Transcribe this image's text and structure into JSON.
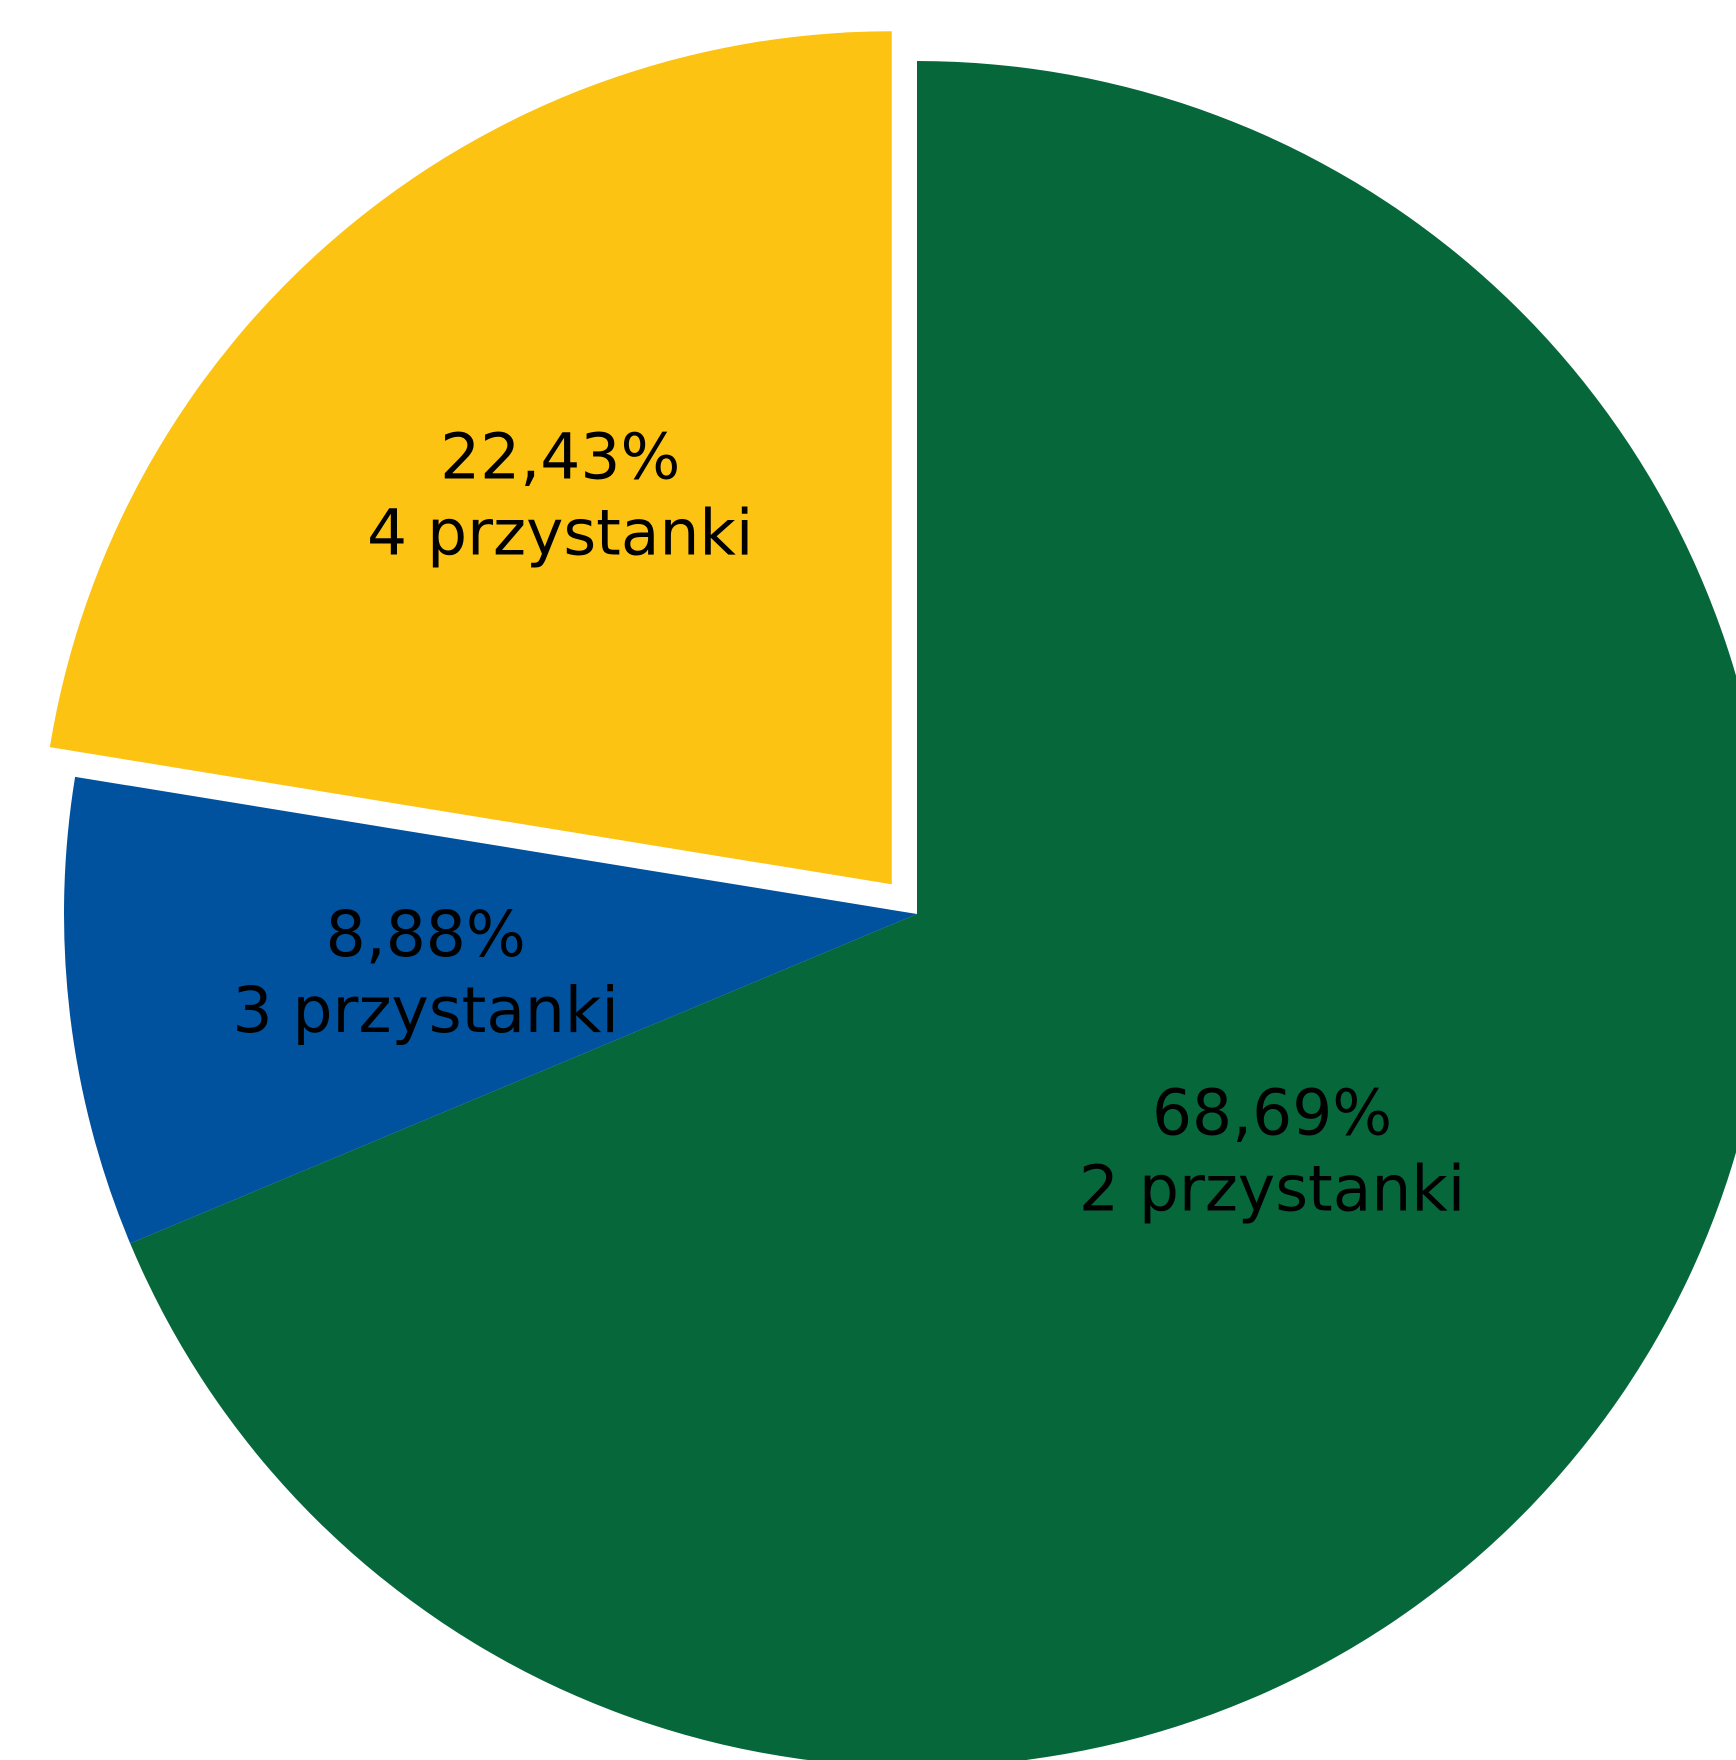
{
  "chart_data": {
    "type": "pie",
    "title": "",
    "slices": [
      {
        "label": "2 przystanki",
        "percent_text": "68,69%",
        "value": 68.69,
        "color": "#06673B",
        "exploded": false
      },
      {
        "label": "3 przystanki",
        "percent_text": "8,88%",
        "value": 8.88,
        "color": "#00519E",
        "exploded": false
      },
      {
        "label": "4 przystanki",
        "percent_text": "22,43%",
        "value": 22.43,
        "color": "#FCC313",
        "exploded": true
      }
    ],
    "start_angle": "12 o'clock",
    "direction": "clockwise",
    "legend": "none",
    "label_placement": "inside"
  }
}
